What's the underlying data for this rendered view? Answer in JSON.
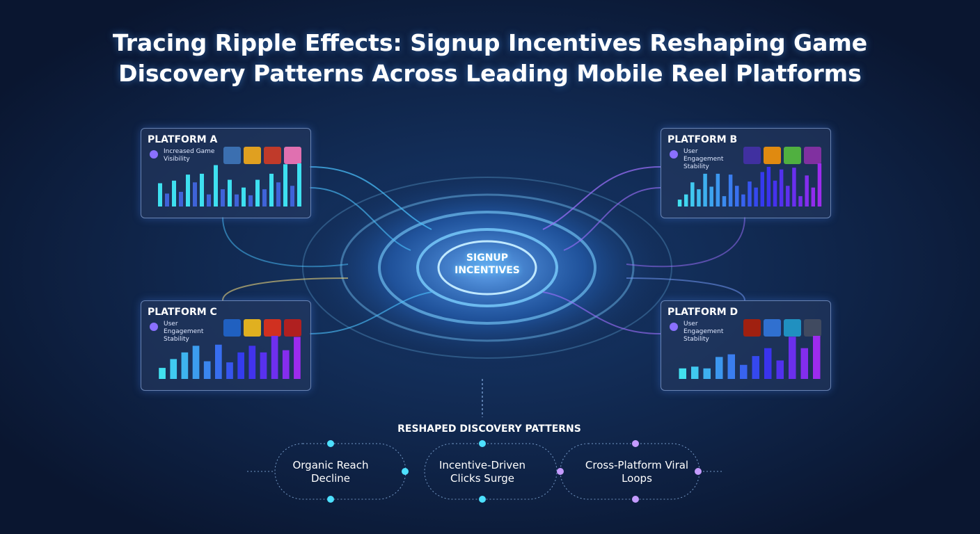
{
  "title": "Tracing Ripple Effects: Signup Incentives Reshaping Game Discovery Patterns Across Leading Mobile Reel Platforms",
  "center": {
    "label": "SIGNUP INCENTIVES"
  },
  "platforms": [
    {
      "name": "PLATFORM A",
      "subtitle": "Increased Game Visibility",
      "values": [
        27,
        15,
        30,
        17,
        37,
        28,
        38,
        14,
        48,
        20,
        31,
        14,
        22,
        13,
        31,
        20,
        38,
        28,
        49,
        24,
        50
      ]
    },
    {
      "name": "PLATFORM B",
      "subtitle": "User Engagement Stability",
      "values": [
        8,
        14,
        28,
        20,
        38,
        23,
        38,
        12,
        37,
        24,
        14,
        29,
        22,
        40,
        46,
        30,
        43,
        24,
        45,
        12,
        36,
        22,
        50
      ]
    },
    {
      "name": "PLATFORM C",
      "subtitle": "User Engagement Stability",
      "values": [
        10,
        18,
        24,
        30,
        16,
        31,
        15,
        24,
        30,
        24,
        39,
        26,
        38
      ]
    },
    {
      "name": "PLATFORM D",
      "subtitle": "User Engagement Stability",
      "values": [
        12,
        14,
        12,
        25,
        28,
        16,
        26,
        35,
        21,
        48,
        35,
        49
      ]
    }
  ],
  "outcomes": {
    "heading": "RESHAPED DISCOVERY PATTERNS",
    "items": [
      "Organic Reach Decline",
      "Incentive-Driven Clicks Surge",
      "Cross-Platform Viral Loops"
    ]
  }
}
